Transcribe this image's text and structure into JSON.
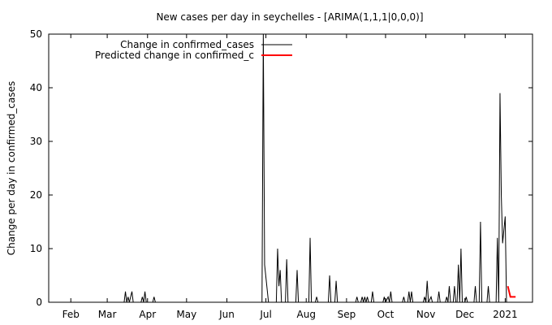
{
  "chart_data": {
    "type": "line",
    "title": "New cases per day in seychelles -  [ARIMA(1,1,1|0,0,0)]",
    "ylabel": "Change per day in confirmed_cases",
    "xlabel": "",
    "ylim": [
      0,
      50
    ],
    "yticks": [
      0,
      10,
      20,
      30,
      40,
      50
    ],
    "xlim": [
      "2021-01-15",
      "2022-01-22"
    ],
    "xticks": [
      {
        "label": "Feb",
        "date": "2021-02-01"
      },
      {
        "label": "Mar",
        "date": "2021-03-01"
      },
      {
        "label": "Apr",
        "date": "2021-04-01"
      },
      {
        "label": "May",
        "date": "2021-05-01"
      },
      {
        "label": "Jun",
        "date": "2021-06-01"
      },
      {
        "label": "Jul",
        "date": "2021-07-01"
      },
      {
        "label": "Aug",
        "date": "2021-08-01"
      },
      {
        "label": "Sep",
        "date": "2021-09-01"
      },
      {
        "label": "Oct",
        "date": "2021-10-01"
      },
      {
        "label": "Nov",
        "date": "2021-11-01"
      },
      {
        "label": "Dec",
        "date": "2021-12-01"
      },
      {
        "label": "2021",
        "date": "2022-01-01"
      }
    ],
    "legend_position": "top-right",
    "series": [
      {
        "name": "Change in confirmed_cases",
        "color": "#000000",
        "points": [
          [
            "2021-01-20",
            0
          ],
          [
            "2021-03-14",
            0
          ],
          [
            "2021-03-15",
            2
          ],
          [
            "2021-03-16",
            0
          ],
          [
            "2021-03-17",
            1
          ],
          [
            "2021-03-18",
            0
          ],
          [
            "2021-03-20",
            2
          ],
          [
            "2021-03-21",
            0
          ],
          [
            "2021-03-27",
            0
          ],
          [
            "2021-03-28",
            1
          ],
          [
            "2021-03-29",
            0
          ],
          [
            "2021-03-30",
            2
          ],
          [
            "2021-03-31",
            0
          ],
          [
            "2021-04-05",
            0
          ],
          [
            "2021-04-06",
            1
          ],
          [
            "2021-04-07",
            0
          ],
          [
            "2021-06-28",
            0
          ],
          [
            "2021-06-29",
            50
          ],
          [
            "2021-06-30",
            7
          ],
          [
            "2021-07-03",
            0
          ],
          [
            "2021-07-09",
            0
          ],
          [
            "2021-07-10",
            10
          ],
          [
            "2021-07-11",
            3
          ],
          [
            "2021-07-12",
            6
          ],
          [
            "2021-07-13",
            0
          ],
          [
            "2021-07-16",
            0
          ],
          [
            "2021-07-17",
            8
          ],
          [
            "2021-07-18",
            0
          ],
          [
            "2021-07-24",
            0
          ],
          [
            "2021-07-25",
            6
          ],
          [
            "2021-07-26",
            0
          ],
          [
            "2021-08-03",
            0
          ],
          [
            "2021-08-04",
            12
          ],
          [
            "2021-08-05",
            0
          ],
          [
            "2021-08-08",
            0
          ],
          [
            "2021-08-09",
            1
          ],
          [
            "2021-08-10",
            0
          ],
          [
            "2021-08-18",
            0
          ],
          [
            "2021-08-19",
            5
          ],
          [
            "2021-08-20",
            0
          ],
          [
            "2021-08-23",
            0
          ],
          [
            "2021-08-24",
            4
          ],
          [
            "2021-08-25",
            0
          ],
          [
            "2021-09-08",
            0
          ],
          [
            "2021-09-09",
            1
          ],
          [
            "2021-09-10",
            0
          ],
          [
            "2021-09-12",
            0
          ],
          [
            "2021-09-13",
            1
          ],
          [
            "2021-09-14",
            0
          ],
          [
            "2021-09-15",
            1
          ],
          [
            "2021-09-16",
            0
          ],
          [
            "2021-09-17",
            1
          ],
          [
            "2021-09-18",
            0
          ],
          [
            "2021-09-20",
            0
          ],
          [
            "2021-09-21",
            2
          ],
          [
            "2021-09-22",
            0
          ],
          [
            "2021-09-29",
            0
          ],
          [
            "2021-09-30",
            1
          ],
          [
            "2021-10-01",
            0
          ],
          [
            "2021-10-03",
            1
          ],
          [
            "2021-10-04",
            0
          ],
          [
            "2021-10-05",
            2
          ],
          [
            "2021-10-06",
            0
          ],
          [
            "2021-10-14",
            0
          ],
          [
            "2021-10-15",
            1
          ],
          [
            "2021-10-16",
            0
          ],
          [
            "2021-10-18",
            0
          ],
          [
            "2021-10-19",
            2
          ],
          [
            "2021-10-20",
            0
          ],
          [
            "2021-10-21",
            2
          ],
          [
            "2021-10-22",
            0
          ],
          [
            "2021-10-30",
            0
          ],
          [
            "2021-10-31",
            1
          ],
          [
            "2021-11-01",
            0
          ],
          [
            "2021-11-02",
            4
          ],
          [
            "2021-11-03",
            0
          ],
          [
            "2021-11-05",
            1
          ],
          [
            "2021-11-06",
            0
          ],
          [
            "2021-11-10",
            0
          ],
          [
            "2021-11-11",
            2
          ],
          [
            "2021-11-12",
            0
          ],
          [
            "2021-11-16",
            0
          ],
          [
            "2021-11-17",
            1
          ],
          [
            "2021-11-18",
            0
          ],
          [
            "2021-11-19",
            3
          ],
          [
            "2021-11-20",
            0
          ],
          [
            "2021-11-22",
            0
          ],
          [
            "2021-11-23",
            3
          ],
          [
            "2021-11-24",
            0
          ],
          [
            "2021-11-25",
            0
          ],
          [
            "2021-11-26",
            7
          ],
          [
            "2021-11-27",
            0
          ],
          [
            "2021-11-28",
            10
          ],
          [
            "2021-11-29",
            0
          ],
          [
            "2021-12-01",
            0
          ],
          [
            "2021-12-02",
            1
          ],
          [
            "2021-12-03",
            0
          ],
          [
            "2021-12-08",
            0
          ],
          [
            "2021-12-09",
            3
          ],
          [
            "2021-12-10",
            0
          ],
          [
            "2021-12-12",
            0
          ],
          [
            "2021-12-13",
            15
          ],
          [
            "2021-12-14",
            0
          ],
          [
            "2021-12-18",
            0
          ],
          [
            "2021-12-19",
            3
          ],
          [
            "2021-12-20",
            0
          ],
          [
            "2021-12-25",
            0
          ],
          [
            "2021-12-26",
            12
          ],
          [
            "2021-12-27",
            0
          ],
          [
            "2021-12-28",
            39
          ],
          [
            "2021-12-29",
            20
          ],
          [
            "2021-12-30",
            11
          ],
          [
            "2022-01-01",
            16
          ],
          [
            "2022-01-02",
            0
          ]
        ]
      },
      {
        "name": "Predicted change in confirmed_c",
        "color": "#ff0000",
        "points": [
          [
            "2022-01-03",
            3
          ],
          [
            "2022-01-05",
            1
          ],
          [
            "2022-01-09",
            1
          ]
        ]
      }
    ]
  }
}
